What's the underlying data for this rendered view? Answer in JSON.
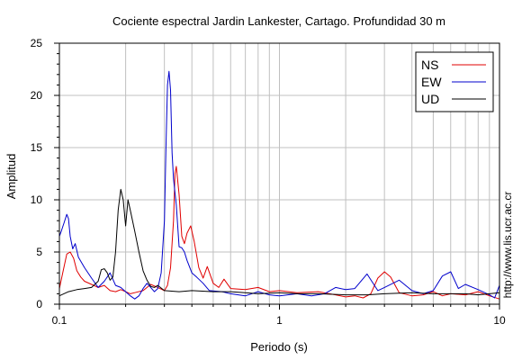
{
  "chart_data": {
    "type": "line",
    "title": "Cociente espectral Jardin Lankester, Cartago. Profundidad 30 m",
    "xlabel": "Periodo (s)",
    "ylabel": "Amplitud",
    "x_scale": "log",
    "xlim": [
      0.1,
      10
    ],
    "ylim": [
      0,
      25
    ],
    "x_ticks": [
      {
        "value": 0.1,
        "label": "0.1"
      },
      {
        "value": 1,
        "label": "1"
      },
      {
        "value": 10,
        "label": "10"
      }
    ],
    "y_ticks": [
      {
        "value": 0,
        "label": "0"
      },
      {
        "value": 5,
        "label": "5"
      },
      {
        "value": 10,
        "label": "10"
      },
      {
        "value": 15,
        "label": "15"
      },
      {
        "value": 20,
        "label": "20"
      },
      {
        "value": 25,
        "label": "25"
      }
    ],
    "grid": true,
    "legend_position": "top-right",
    "side_annotation": "http://www.lis.ucr.ac.cr",
    "series": [
      {
        "name": "NS",
        "color": "#e00000",
        "points": [
          [
            0.1,
            1.5
          ],
          [
            0.104,
            3.2
          ],
          [
            0.108,
            4.8
          ],
          [
            0.112,
            5.0
          ],
          [
            0.116,
            4.4
          ],
          [
            0.12,
            3.2
          ],
          [
            0.125,
            2.6
          ],
          [
            0.13,
            2.2
          ],
          [
            0.14,
            1.9
          ],
          [
            0.15,
            1.6
          ],
          [
            0.16,
            1.8
          ],
          [
            0.17,
            1.3
          ],
          [
            0.18,
            1.2
          ],
          [
            0.19,
            1.4
          ],
          [
            0.2,
            1.2
          ],
          [
            0.21,
            1.0
          ],
          [
            0.22,
            1.1
          ],
          [
            0.24,
            1.3
          ],
          [
            0.26,
            1.9
          ],
          [
            0.28,
            1.6
          ],
          [
            0.3,
            1.3
          ],
          [
            0.31,
            1.8
          ],
          [
            0.32,
            3.5
          ],
          [
            0.33,
            8.0
          ],
          [
            0.335,
            12.5
          ],
          [
            0.34,
            13.2
          ],
          [
            0.35,
            10.5
          ],
          [
            0.36,
            6.5
          ],
          [
            0.37,
            5.8
          ],
          [
            0.38,
            6.8
          ],
          [
            0.395,
            7.5
          ],
          [
            0.41,
            6.0
          ],
          [
            0.43,
            3.5
          ],
          [
            0.45,
            2.5
          ],
          [
            0.47,
            3.6
          ],
          [
            0.5,
            2.0
          ],
          [
            0.53,
            1.6
          ],
          [
            0.56,
            2.4
          ],
          [
            0.6,
            1.5
          ],
          [
            0.7,
            1.4
          ],
          [
            0.8,
            1.6
          ],
          [
            0.9,
            1.2
          ],
          [
            1.0,
            1.3
          ],
          [
            1.2,
            1.1
          ],
          [
            1.5,
            1.2
          ],
          [
            1.8,
            0.9
          ],
          [
            2.0,
            0.7
          ],
          [
            2.2,
            0.8
          ],
          [
            2.4,
            0.6
          ],
          [
            2.6,
            1.0
          ],
          [
            2.8,
            2.5
          ],
          [
            3.0,
            3.1
          ],
          [
            3.2,
            2.6
          ],
          [
            3.5,
            1.1
          ],
          [
            4.0,
            0.8
          ],
          [
            4.5,
            0.9
          ],
          [
            5.0,
            1.2
          ],
          [
            5.5,
            0.8
          ],
          [
            6.0,
            1.0
          ],
          [
            7.0,
            0.9
          ],
          [
            8.0,
            1.2
          ],
          [
            9.0,
            0.8
          ],
          [
            10.0,
            0.5
          ]
        ]
      },
      {
        "name": "EW",
        "color": "#0000cc",
        "points": [
          [
            0.1,
            6.5
          ],
          [
            0.102,
            7.0
          ],
          [
            0.105,
            7.8
          ],
          [
            0.108,
            8.6
          ],
          [
            0.11,
            8.2
          ],
          [
            0.112,
            6.5
          ],
          [
            0.115,
            5.3
          ],
          [
            0.118,
            5.8
          ],
          [
            0.122,
            4.5
          ],
          [
            0.13,
            3.5
          ],
          [
            0.14,
            2.5
          ],
          [
            0.15,
            1.6
          ],
          [
            0.16,
            2.2
          ],
          [
            0.17,
            3.0
          ],
          [
            0.18,
            1.8
          ],
          [
            0.19,
            1.6
          ],
          [
            0.2,
            1.2
          ],
          [
            0.21,
            0.8
          ],
          [
            0.22,
            0.5
          ],
          [
            0.23,
            0.8
          ],
          [
            0.24,
            1.5
          ],
          [
            0.25,
            2.0
          ],
          [
            0.26,
            1.6
          ],
          [
            0.27,
            1.2
          ],
          [
            0.28,
            1.5
          ],
          [
            0.29,
            3.0
          ],
          [
            0.3,
            8.0
          ],
          [
            0.305,
            15.0
          ],
          [
            0.31,
            21.0
          ],
          [
            0.315,
            22.3
          ],
          [
            0.32,
            20.5
          ],
          [
            0.325,
            14.5
          ],
          [
            0.33,
            12.0
          ],
          [
            0.34,
            9.5
          ],
          [
            0.35,
            5.5
          ],
          [
            0.36,
            5.4
          ],
          [
            0.37,
            5.0
          ],
          [
            0.38,
            4.2
          ],
          [
            0.4,
            3.0
          ],
          [
            0.42,
            2.6
          ],
          [
            0.45,
            2.0
          ],
          [
            0.48,
            1.3
          ],
          [
            0.55,
            1.2
          ],
          [
            0.6,
            1.0
          ],
          [
            0.7,
            0.8
          ],
          [
            0.8,
            1.2
          ],
          [
            0.9,
            0.9
          ],
          [
            1.0,
            0.8
          ],
          [
            1.2,
            1.0
          ],
          [
            1.4,
            0.8
          ],
          [
            1.6,
            1.0
          ],
          [
            1.8,
            1.6
          ],
          [
            2.0,
            1.4
          ],
          [
            2.2,
            1.5
          ],
          [
            2.5,
            2.9
          ],
          [
            2.8,
            1.3
          ],
          [
            3.0,
            1.6
          ],
          [
            3.5,
            2.3
          ],
          [
            4.0,
            1.3
          ],
          [
            4.5,
            1.0
          ],
          [
            5.0,
            1.3
          ],
          [
            5.5,
            2.7
          ],
          [
            6.0,
            3.1
          ],
          [
            6.5,
            1.5
          ],
          [
            7.0,
            1.9
          ],
          [
            8.0,
            1.4
          ],
          [
            9.0,
            0.9
          ],
          [
            9.5,
            0.6
          ],
          [
            10.0,
            1.8
          ]
        ]
      },
      {
        "name": "UD",
        "color": "#000000",
        "points": [
          [
            0.1,
            0.8
          ],
          [
            0.11,
            1.2
          ],
          [
            0.12,
            1.4
          ],
          [
            0.13,
            1.5
          ],
          [
            0.14,
            1.6
          ],
          [
            0.15,
            2.2
          ],
          [
            0.155,
            3.3
          ],
          [
            0.16,
            3.4
          ],
          [
            0.165,
            3.0
          ],
          [
            0.17,
            2.3
          ],
          [
            0.175,
            2.6
          ],
          [
            0.18,
            5.0
          ],
          [
            0.185,
            9.0
          ],
          [
            0.19,
            11.0
          ],
          [
            0.195,
            10.0
          ],
          [
            0.2,
            7.5
          ],
          [
            0.205,
            10.0
          ],
          [
            0.21,
            9.0
          ],
          [
            0.22,
            7.0
          ],
          [
            0.23,
            5.0
          ],
          [
            0.24,
            3.2
          ],
          [
            0.25,
            2.3
          ],
          [
            0.26,
            1.7
          ],
          [
            0.27,
            1.6
          ],
          [
            0.28,
            1.8
          ],
          [
            0.3,
            1.3
          ],
          [
            0.35,
            1.2
          ],
          [
            0.4,
            1.3
          ],
          [
            0.5,
            1.2
          ],
          [
            0.6,
            1.2
          ],
          [
            0.7,
            1.1
          ],
          [
            0.8,
            1.0
          ],
          [
            1.0,
            1.1
          ],
          [
            1.2,
            1.0
          ],
          [
            1.5,
            1.0
          ],
          [
            2.0,
            0.9
          ],
          [
            2.5,
            0.9
          ],
          [
            3.0,
            1.0
          ],
          [
            4.0,
            1.1
          ],
          [
            5.0,
            1.0
          ],
          [
            6.0,
            1.0
          ],
          [
            7.0,
            1.0
          ],
          [
            8.0,
            0.9
          ],
          [
            9.0,
            1.0
          ],
          [
            10.0,
            1.1
          ]
        ]
      }
    ]
  }
}
